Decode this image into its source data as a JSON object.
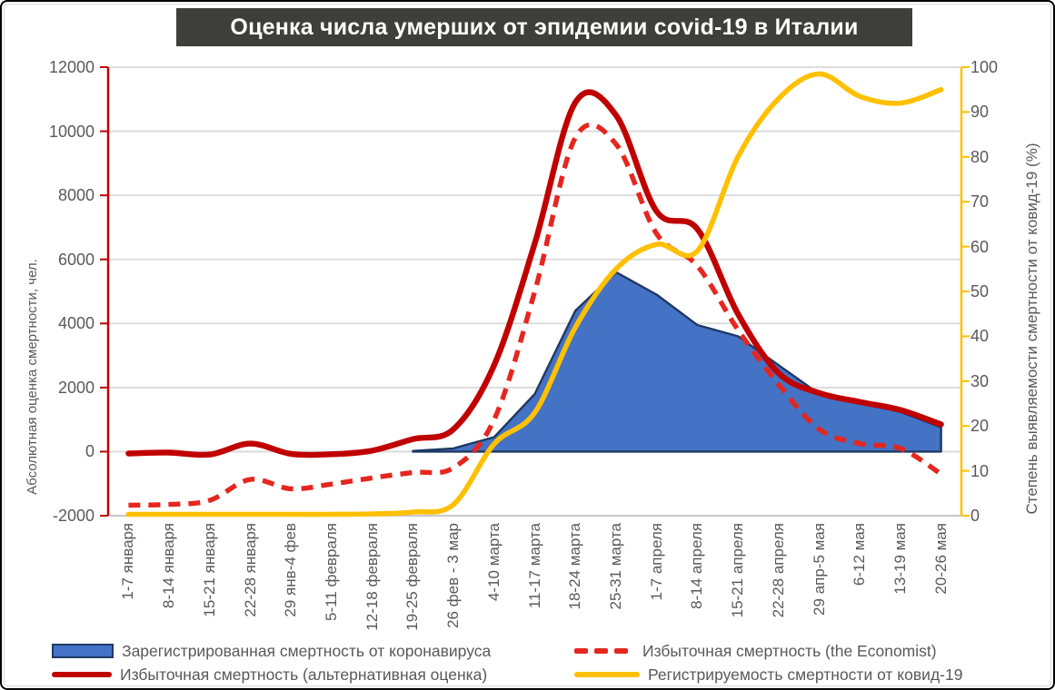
{
  "title": "Оценка числа умерших от эпидемии covid-19 в Италии",
  "title_bar": {
    "bg": "#3E3E3C",
    "text_color": "#FFFFFF"
  },
  "axes": {
    "left": {
      "title": "Абсолютная оценка смертности, чел.",
      "tick_labels": [
        "12000",
        "10000",
        "8000",
        "6000",
        "4000",
        "2000",
        "0",
        "-2000"
      ],
      "axis_color": "#C00000",
      "text_color": "#595959"
    },
    "right": {
      "title": "Степень выявляемости смертности от ковид-19 (%)",
      "tick_labels": [
        "100",
        "90",
        "80",
        "70",
        "60",
        "50",
        "40",
        "30",
        "20",
        "10",
        "0"
      ],
      "axis_color": "#FFC000",
      "text_color": "#595959"
    }
  },
  "colors": {
    "registered_area_fill": "#4472C4",
    "registered_area_border": "#1F3864",
    "excess_alt_line": "#C00000",
    "excess_economist_line": "#E5261F",
    "detection_rate_line": "#FFC000",
    "gridline": "#D9D9D9",
    "bottom_axis": "#BFBFBF"
  },
  "chart_data": {
    "type": "line",
    "title": "Оценка числа умерших от эпидемии covid-19 в Италии",
    "categories": [
      "1-7 января",
      "8-14 января",
      "15-21 января",
      "22-28 января",
      "29 янв-4 фев",
      "5-11 февраля",
      "12-18 февраля",
      "19-25 февраля",
      "26 фев - 3 мар",
      "4-10 марта",
      "11-17 марта",
      "18-24 марта",
      "25-31 марта",
      "1-7 апреля",
      "8-14 апреля",
      "15-21 апреля",
      "22-28 апреля",
      "29 апр-5 мая",
      "6-12 мая",
      "13-19 мая",
      "20-26 мая"
    ],
    "left_axis_label": "Абсолютная оценка смертности, чел.",
    "right_axis_label": "Степень выявляемости смертности от ковид-19 (%)",
    "left_ylim": [
      -2000,
      12000
    ],
    "left_step": 2000,
    "right_ylim": [
      0,
      100
    ],
    "right_step": 10,
    "grid": true,
    "legend_position": "bottom",
    "series": [
      {
        "name": "Зарегистрированная смертность от коронавируса",
        "type": "area",
        "axis": "left",
        "fill": "#4472C4",
        "stroke": "#1F3864",
        "values": [
          0,
          0,
          0,
          0,
          0,
          0,
          0,
          20,
          100,
          450,
          1800,
          4400,
          5600,
          4900,
          3950,
          3600,
          2700,
          1800,
          1520,
          1240,
          760
        ]
      },
      {
        "name": "Избыточная смертность (альтернативная оценка)",
        "type": "line",
        "line_style": "solid",
        "axis": "left",
        "stroke": "#C00000",
        "values": [
          -60,
          -30,
          -90,
          250,
          -70,
          -80,
          30,
          390,
          700,
          2700,
          6500,
          10900,
          10500,
          7500,
          6950,
          4300,
          2450,
          1830,
          1550,
          1300,
          850
        ]
      },
      {
        "name": "Избыточная смертность (the Economist)",
        "type": "line",
        "line_style": "dashed",
        "axis": "left",
        "stroke": "#E5261F",
        "values": [
          -1670,
          -1650,
          -1520,
          -870,
          -1160,
          -1015,
          -820,
          -650,
          -500,
          1000,
          5000,
          9800,
          9600,
          6800,
          5800,
          3800,
          2100,
          700,
          250,
          100,
          -700
        ]
      },
      {
        "name": "Регистрируемость смертности от ковид-19",
        "type": "line",
        "line_style": "solid",
        "axis": "right",
        "stroke": "#FFC000",
        "values": [
          0.3,
          0.3,
          0.3,
          0.3,
          0.3,
          0.3,
          0.4,
          0.8,
          2.5,
          16,
          23,
          42,
          55,
          60.5,
          59,
          80,
          93,
          98.5,
          93.5,
          92,
          95
        ]
      }
    ]
  },
  "legend": {
    "items": [
      {
        "label": "Зарегистрированная смертность от коронавируса",
        "marker": "area-swatch",
        "color": "#4472C4",
        "border": "#1F3864"
      },
      {
        "label": "Избыточная смертность (альтернативная оценка)",
        "marker": "solid-line",
        "color": "#C00000"
      },
      {
        "label": "Избыточная смертность (the Economist)",
        "marker": "dashed-line",
        "color": "#E5261F"
      },
      {
        "label": "Регистрируемость смертности от ковид-19",
        "marker": "solid-line",
        "color": "#FFC000"
      }
    ]
  }
}
